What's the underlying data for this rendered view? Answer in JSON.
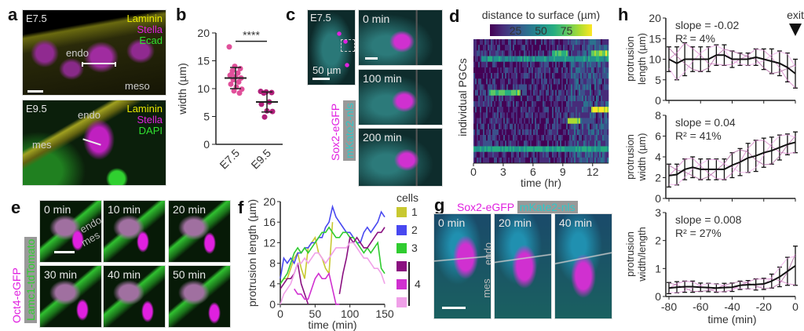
{
  "panels": {
    "a": {
      "label": "a",
      "top": {
        "stage": "E7.5",
        "channels": [
          "Laminin",
          "Stella",
          "Ecad"
        ],
        "regions": [
          "endo",
          "meso"
        ]
      },
      "bottom": {
        "stage": "E9.5",
        "channels": [
          "Laminin",
          "Stella",
          "DAPI"
        ],
        "regions": [
          "endo",
          "mes"
        ]
      },
      "channel_colors": {
        "Laminin": "#e8e800",
        "Stella": "#e020e0",
        "Ecad": "#30e030",
        "DAPI": "#30e030"
      }
    },
    "b": {
      "label": "b"
    },
    "c": {
      "label": "c",
      "stage": "E7.5",
      "scale": "50 µm",
      "frames": [
        "0 min",
        "100 min",
        "200 min"
      ],
      "markers": [
        "Sox2-eGFP",
        "mKate2-nls"
      ],
      "marker_colors": [
        "#e020e0",
        "#30c8c8"
      ]
    },
    "d": {
      "label": "d"
    },
    "e": {
      "label": "e",
      "frames": [
        "0 min",
        "10 min",
        "20 min",
        "30 min",
        "40 min",
        "50 min"
      ],
      "regions": [
        "endo",
        "mes"
      ],
      "markers": [
        "Oct4-eGFP",
        "Lamc1-tdTomato"
      ]
    },
    "f": {
      "label": "f"
    },
    "g": {
      "label": "g",
      "frames": [
        "0 min",
        "20 min",
        "40 min"
      ],
      "regions": [
        "endo",
        "mes"
      ],
      "markers": [
        "Sox2-eGFP",
        "mKate2-nls"
      ]
    },
    "h": {
      "label": "h",
      "exit_label": "exit"
    }
  },
  "chart_data": [
    {
      "id": "b",
      "type": "scatter",
      "categories": [
        "E7.5",
        "E9.5"
      ],
      "ylabel": "width (µm)",
      "ylim": [
        0,
        20
      ],
      "yticks": [
        0,
        5,
        10,
        15,
        20
      ],
      "series": [
        {
          "category": "E7.5",
          "values": [
            17.5,
            14,
            13.6,
            13.2,
            12.8,
            12.4,
            12.1,
            11.9,
            11.6,
            11.2,
            10.8,
            10.3,
            9.9,
            9.6,
            9.2,
            12.6
          ],
          "mean": 11.9,
          "sd": [
            10.0,
            13.8
          ],
          "color": "#e0509a"
        },
        {
          "category": "E9.5",
          "values": [
            9.5,
            9.4,
            9.3,
            9.2,
            7.6,
            7.2,
            6.0,
            5.9,
            4.9
          ],
          "mean": 7.6,
          "sd": [
            5.8,
            9.4
          ],
          "color": "#b0207a"
        }
      ],
      "significance": "****"
    },
    {
      "id": "d",
      "type": "heatmap",
      "title": "distance to surface (µm)",
      "colorbar_ticks": [
        25,
        50,
        75
      ],
      "xlabel": "time (hr)",
      "ylabel": "individual PGCs",
      "xticks": [
        0,
        3,
        6,
        9,
        12
      ],
      "xlim": [
        0,
        13.6
      ],
      "colormap": "viridis"
    },
    {
      "id": "f",
      "type": "line",
      "xlabel": "time (min)",
      "ylabel": "protrusion length (µm)",
      "xlim": [
        0,
        150
      ],
      "ylim": [
        0,
        20
      ],
      "xticks": [
        0,
        50,
        100,
        150
      ],
      "yticks": [
        0,
        4,
        8,
        12,
        16,
        20
      ],
      "legend_title": "cells",
      "series": [
        {
          "name": "1",
          "color": "#c8c830",
          "x": [
            0,
            5,
            10,
            15,
            20,
            25,
            30,
            35,
            40,
            45,
            50,
            55,
            60,
            65,
            70,
            75
          ],
          "y": [
            4,
            5,
            5,
            7,
            9,
            10,
            7,
            5,
            11,
            12,
            13,
            10,
            9,
            7,
            6,
            16
          ]
        },
        {
          "name": "2",
          "color": "#4848f0",
          "x": [
            0,
            5,
            10,
            15,
            20,
            25,
            30,
            35,
            40,
            45,
            50,
            55,
            60,
            65,
            70,
            75,
            80,
            85,
            90,
            95,
            100,
            105,
            110,
            115,
            120,
            125,
            130,
            135,
            140,
            145,
            150
          ],
          "y": [
            5,
            9,
            8,
            9,
            8,
            10,
            10,
            11,
            11,
            12,
            12,
            13,
            13,
            15,
            16,
            19,
            17,
            16,
            15,
            14,
            14,
            13,
            12,
            12,
            14,
            15,
            14,
            15,
            16,
            18,
            17
          ]
        },
        {
          "name": "3",
          "color": "#30cc30",
          "x": [
            0,
            5,
            10,
            15,
            20,
            25,
            30,
            35,
            40,
            45,
            50,
            55,
            60,
            65,
            70,
            75,
            80,
            85,
            90,
            95,
            100,
            105,
            110,
            115,
            120,
            125,
            130,
            135,
            140,
            145,
            150
          ],
          "y": [
            4,
            5,
            6,
            8,
            10,
            11,
            10,
            11,
            10,
            11,
            12,
            13,
            14,
            14,
            15,
            14,
            13,
            13,
            14,
            14,
            13,
            13,
            12,
            11,
            10,
            11,
            10,
            11,
            12,
            7,
            6
          ]
        },
        {
          "name": "4",
          "color": "#8a1080",
          "x": [
            0,
            5,
            10,
            15,
            20,
            25,
            30,
            35,
            40,
            45,
            50,
            55,
            60,
            65,
            70,
            75,
            80,
            85,
            90,
            95,
            100,
            105,
            110,
            115,
            120,
            125,
            130,
            135,
            140,
            145,
            150
          ],
          "y": [
            3,
            4,
            5,
            5,
            6,
            8,
            4,
            2,
            0,
            null,
            null,
            null,
            null,
            null,
            null,
            null,
            null,
            2,
            6,
            9,
            13,
            12,
            13,
            12,
            11,
            11,
            12,
            13,
            14,
            14,
            15
          ]
        },
        {
          "name": "4",
          "color": "#d030d0",
          "x": [
            20,
            25,
            30,
            35,
            40,
            45,
            50,
            55,
            60,
            65,
            70,
            75,
            80,
            85
          ],
          "y": [
            3,
            2,
            2,
            1,
            1,
            3,
            5,
            6,
            5,
            5,
            6,
            3,
            0,
            0
          ]
        },
        {
          "name": "4",
          "color": "#f0a0e8",
          "x": [
            0,
            5,
            10,
            15,
            20,
            25,
            30,
            35,
            40,
            45,
            50,
            55,
            60,
            65,
            70,
            75,
            80,
            85,
            90,
            95,
            100,
            105,
            110,
            115,
            120,
            125,
            130,
            135,
            140,
            145,
            150
          ],
          "y": [
            0,
            2,
            3,
            4,
            6,
            8,
            8,
            9,
            8,
            9,
            10,
            10,
            9,
            8,
            9,
            10,
            11,
            11,
            11,
            11,
            12,
            12,
            11,
            10,
            9,
            9,
            8,
            7,
            7,
            6,
            4
          ]
        }
      ]
    },
    {
      "id": "h1",
      "type": "line",
      "ylabel": "protrusion length (µm)",
      "ylim": [
        0,
        20
      ],
      "yticks": [
        0,
        5,
        10,
        15,
        20
      ],
      "xlim": [
        -80,
        0
      ],
      "annotation": [
        "slope = -0.02",
        "R² = 4%"
      ],
      "x": [
        -80,
        -75,
        -70,
        -65,
        -60,
        -55,
        -50,
        -45,
        -40,
        -35,
        -30,
        -25,
        -20,
        -15,
        -10,
        -5,
        0
      ],
      "mean": [
        10,
        9,
        10,
        10,
        10,
        10,
        11,
        11,
        10,
        10,
        10,
        10.5,
        10,
        9.5,
        9,
        8,
        6.5
      ],
      "error": [
        3,
        4,
        4,
        3,
        3,
        3,
        2.5,
        2.5,
        2,
        1.5,
        1.5,
        2,
        2.5,
        3,
        3,
        3.5,
        3.5
      ]
    },
    {
      "id": "h2",
      "type": "line",
      "ylabel": "protrusion width (µm)",
      "ylim": [
        0,
        8
      ],
      "yticks": [
        0,
        2,
        4,
        6,
        8
      ],
      "xlim": [
        -80,
        0
      ],
      "annotation": [
        "slope = 0.04",
        "R² = 41%"
      ],
      "x": [
        -80,
        -75,
        -70,
        -65,
        -60,
        -55,
        -50,
        -45,
        -40,
        -35,
        -30,
        -25,
        -20,
        -15,
        -10,
        -5,
        0
      ],
      "mean": [
        2.2,
        2.3,
        2.8,
        3,
        2.8,
        2.8,
        2.8,
        2.8,
        3.2,
        3.5,
        3.9,
        4.1,
        4.4,
        4.6,
        4.9,
        5.2,
        5.4
      ],
      "error": [
        1.1,
        1,
        1,
        1,
        1,
        1,
        1,
        1,
        1.2,
        1.3,
        1.4,
        1.5,
        1.4,
        1.3,
        1.2,
        1,
        1
      ]
    },
    {
      "id": "h3",
      "type": "line",
      "ylabel": "protrusion width/length",
      "xlabel": "time (min)",
      "ylim": [
        0,
        3
      ],
      "yticks": [
        0,
        1,
        2,
        3
      ],
      "xlim": [
        -80,
        0
      ],
      "xticks": [
        -80,
        -60,
        -40,
        -20,
        0
      ],
      "annotation": [
        "slope = 0.008",
        "R² = 27%"
      ],
      "x": [
        -80,
        -75,
        -70,
        -65,
        -60,
        -55,
        -50,
        -45,
        -40,
        -35,
        -30,
        -25,
        -20,
        -15,
        -10,
        -5,
        0
      ],
      "mean": [
        0.3,
        0.33,
        0.35,
        0.35,
        0.33,
        0.32,
        0.3,
        0.32,
        0.33,
        0.4,
        0.42,
        0.43,
        0.45,
        0.55,
        0.7,
        0.9,
        1.1
      ],
      "error": [
        0.2,
        0.2,
        0.2,
        0.2,
        0.15,
        0.15,
        0.15,
        0.15,
        0.15,
        0.15,
        0.15,
        0.2,
        0.2,
        0.25,
        0.35,
        0.5,
        0.7
      ]
    }
  ]
}
